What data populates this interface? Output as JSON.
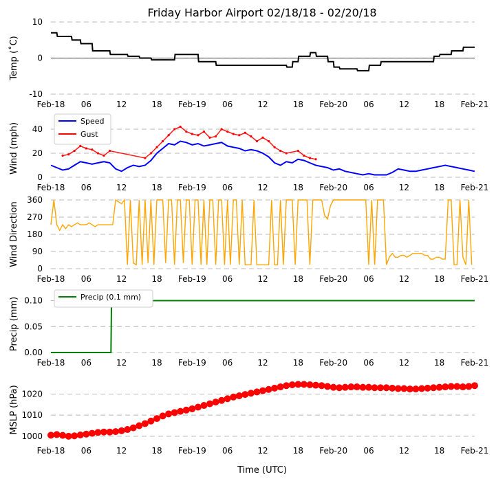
{
  "title": "Friday Harbor Airport 02/18/18 - 02/20/18",
  "xlabel": "Time (UTC)",
  "x_tick_labels": [
    "Feb-18",
    "06",
    "12",
    "18",
    "Feb-19",
    "06",
    "12",
    "18",
    "Feb-20",
    "06",
    "12",
    "18",
    "Feb-21"
  ],
  "x_range_hours": [
    0,
    72
  ],
  "colors": {
    "temp": "#000000",
    "speed": "#0000ff",
    "gust": "#ff0000",
    "direction": "#ffa500",
    "precip": "#008000",
    "pressure": "#ff0000"
  },
  "chart_data": [
    {
      "id": "temp",
      "type": "line",
      "ylabel": "Temp (˚C)",
      "ylim": [
        -10,
        10
      ],
      "yticks": [
        -10,
        0,
        10
      ],
      "series": [
        {
          "name": "Temp",
          "x": [
            0,
            1,
            1.1,
            3.5,
            3.6,
            5,
            5.1,
            7,
            7.1,
            10,
            10.1,
            13,
            13.1,
            15,
            15.1,
            17,
            17.1,
            21,
            21.1,
            25,
            25.1,
            28,
            28.1,
            40,
            40.1,
            41,
            41.1,
            42,
            42.1,
            44,
            44.1,
            45,
            45.1,
            47,
            47.1,
            48,
            48.1,
            49,
            49.1,
            52,
            52.1,
            54,
            54.1,
            56,
            56.1,
            65,
            65.1,
            66,
            66.1,
            68,
            68.1,
            70,
            70.1,
            72
          ],
          "y": [
            7,
            7,
            6,
            6,
            5,
            5,
            4,
            4,
            2,
            2,
            1,
            1,
            0.5,
            0.5,
            0,
            0,
            -0.5,
            -0.5,
            1,
            1,
            -1,
            -1,
            -2,
            -2,
            -2.5,
            -2.5,
            -1,
            -1,
            0.5,
            0.5,
            1.5,
            1.5,
            0.5,
            0.5,
            -1,
            -1,
            -2.5,
            -2.5,
            -3,
            -3,
            -3.5,
            -3.5,
            -2,
            -2,
            -1,
            -1,
            0.5,
            0.5,
            1,
            1,
            2,
            2,
            3,
            3
          ]
        }
      ]
    },
    {
      "id": "wind",
      "type": "line",
      "ylabel": "Wind (mph)",
      "ylim": [
        0,
        48
      ],
      "yticks": [
        0,
        20,
        40
      ],
      "legend": [
        "Speed",
        "Gust"
      ],
      "series": [
        {
          "name": "Speed",
          "x": [
            0,
            1,
            2,
            3,
            4,
            5,
            6,
            7,
            8,
            9,
            10,
            11,
            12,
            13,
            14,
            15,
            16,
            17,
            18,
            19,
            20,
            21,
            22,
            23,
            24,
            25,
            26,
            27,
            28,
            29,
            30,
            31,
            32,
            33,
            34,
            35,
            36,
            37,
            38,
            39,
            40,
            41,
            42,
            43,
            44,
            45,
            46,
            47,
            48,
            49,
            50,
            51,
            52,
            53,
            54,
            55,
            56,
            57,
            58,
            59,
            60,
            61,
            62,
            63,
            64,
            65,
            66,
            67,
            68,
            69,
            70,
            71,
            72
          ],
          "y": [
            10,
            8,
            6,
            7,
            10,
            13,
            12,
            11,
            12,
            13,
            12,
            7,
            5,
            8,
            10,
            9,
            10,
            14,
            20,
            24,
            28,
            27,
            30,
            29,
            27,
            28,
            26,
            27,
            28,
            29,
            26,
            25,
            24,
            22,
            23,
            22,
            20,
            17,
            12,
            10,
            13,
            12,
            15,
            14,
            12,
            10,
            9,
            8,
            6,
            7,
            5,
            4,
            3,
            2,
            3,
            2,
            2,
            2,
            4,
            7,
            6,
            5,
            5,
            6,
            7,
            8,
            9,
            10,
            9,
            8,
            7,
            6,
            5
          ]
        },
        {
          "name": "Gust",
          "x": [
            2,
            3,
            4,
            5,
            6,
            7,
            8,
            9,
            10,
            16,
            17,
            18,
            19,
            20,
            21,
            22,
            23,
            24,
            25,
            26,
            27,
            28,
            29,
            30,
            31,
            32,
            33,
            34,
            35,
            36,
            37,
            38,
            39,
            40,
            42,
            43,
            44,
            45
          ],
          "y": [
            18,
            19,
            22,
            26,
            24,
            23,
            20,
            18,
            22,
            16,
            20,
            25,
            30,
            35,
            40,
            42,
            38,
            36,
            35,
            38,
            33,
            34,
            40,
            38,
            36,
            35,
            37,
            34,
            30,
            33,
            30,
            25,
            22,
            20,
            22,
            18,
            16,
            15
          ]
        }
      ]
    },
    {
      "id": "direction",
      "type": "scatter-line",
      "ylabel": "Wind Direction",
      "ylim": [
        0,
        360
      ],
      "yticks": [
        0,
        90,
        180,
        270,
        360
      ],
      "series": [
        {
          "name": "Direction",
          "x": [
            0,
            0.5,
            1,
            1.5,
            2,
            2.5,
            3,
            3.5,
            4,
            4.5,
            5,
            5.5,
            6,
            6.5,
            7,
            7.5,
            8,
            8.5,
            9,
            9.5,
            10,
            10.5,
            11,
            11.5,
            12,
            12.5,
            13,
            13.5,
            14,
            14.5,
            15,
            15.5,
            16,
            16.5,
            17,
            17.5,
            18,
            18.5,
            19,
            19.5,
            20,
            20.5,
            21,
            21.5,
            22,
            22.5,
            23,
            23.5,
            24,
            24.5,
            25,
            25.5,
            26,
            26.5,
            27,
            27.5,
            28,
            28.5,
            29,
            29.5,
            30,
            30.5,
            31,
            31.5,
            32,
            32.5,
            33,
            33.5,
            34,
            34.5,
            35,
            35.5,
            36,
            36.5,
            37,
            37.5,
            38,
            38.5,
            39,
            39.5,
            40,
            40.5,
            41,
            41.5,
            42,
            42.5,
            43,
            43.5,
            44,
            44.5,
            45,
            45.5,
            46,
            46.5,
            47,
            47.5,
            48,
            48.5,
            49,
            49.5,
            50,
            50.5,
            51,
            51.5,
            52,
            52.5,
            53,
            53.5,
            54,
            54.5,
            55,
            55.5,
            56,
            56.5,
            57,
            57.5,
            58,
            58.5,
            59,
            59.5,
            60,
            60.5,
            61,
            61.5,
            62,
            62.5,
            63,
            63.5,
            64,
            64.5,
            65,
            65.5,
            66,
            66.5,
            67,
            67.5,
            68,
            68.5,
            69,
            69.5,
            70,
            70.5,
            71,
            71.5
          ],
          "y": [
            230,
            360,
            230,
            200,
            230,
            210,
            230,
            220,
            230,
            240,
            230,
            230,
            230,
            240,
            230,
            220,
            230,
            230,
            230,
            230,
            230,
            230,
            360,
            350,
            340,
            360,
            20,
            360,
            30,
            20,
            360,
            20,
            360,
            30,
            360,
            20,
            360,
            360,
            360,
            30,
            360,
            360,
            20,
            360,
            360,
            30,
            360,
            360,
            20,
            360,
            360,
            20,
            360,
            20,
            360,
            360,
            20,
            360,
            360,
            20,
            360,
            20,
            360,
            360,
            20,
            360,
            20,
            20,
            20,
            360,
            20,
            20,
            20,
            20,
            20,
            360,
            20,
            20,
            360,
            20,
            360,
            360,
            360,
            20,
            360,
            360,
            360,
            360,
            20,
            360,
            360,
            360,
            360,
            280,
            260,
            330,
            360,
            360,
            360,
            360,
            360,
            360,
            360,
            360,
            360,
            360,
            360,
            360,
            20,
            360,
            20,
            360,
            360,
            360,
            20,
            60,
            80,
            60,
            60,
            70,
            70,
            60,
            70,
            80,
            80,
            80,
            80,
            70,
            70,
            50,
            50,
            60,
            60,
            50,
            50,
            360,
            360,
            20,
            20,
            360,
            60,
            20,
            360,
            20
          ]
        }
      ]
    },
    {
      "id": "precip",
      "type": "line",
      "ylabel": "Precip (mm)",
      "ylim": [
        0,
        0.11
      ],
      "yticks": [
        "0.00",
        "0.05",
        "0.10"
      ],
      "legend": [
        "Precip (0.1 mm)"
      ],
      "series": [
        {
          "name": "Precip (0.1 mm)",
          "x": [
            0,
            10.2,
            10.3,
            72
          ],
          "y": [
            0,
            0,
            0.1,
            0.1
          ]
        }
      ]
    },
    {
      "id": "pressure",
      "type": "line-marker",
      "ylabel": "MSLP (hPa)",
      "xlabel": "Time (UTC)",
      "ylim": [
        998,
        1027
      ],
      "yticks": [
        1000,
        1010,
        1020
      ],
      "series": [
        {
          "name": "MSLP",
          "x": [
            0,
            1,
            2,
            3,
            4,
            5,
            6,
            7,
            8,
            9,
            10,
            11,
            12,
            13,
            14,
            15,
            16,
            17,
            18,
            19,
            20,
            21,
            22,
            23,
            24,
            25,
            26,
            27,
            28,
            29,
            30,
            31,
            32,
            33,
            34,
            35,
            36,
            37,
            38,
            39,
            40,
            41,
            42,
            43,
            44,
            45,
            46,
            47,
            48,
            49,
            50,
            51,
            52,
            53,
            54,
            55,
            56,
            57,
            58,
            59,
            60,
            61,
            62,
            63,
            64,
            65,
            66,
            67,
            68,
            69,
            70,
            71,
            72
          ],
          "y": [
            1000.5,
            1000.8,
            1000.4,
            1000.0,
            1000.2,
            1000.6,
            1001.0,
            1001.4,
            1001.8,
            1002.0,
            1002.0,
            1002.2,
            1002.6,
            1003.2,
            1004.0,
            1005.0,
            1006.0,
            1007.2,
            1008.4,
            1009.6,
            1010.6,
            1011.2,
            1011.8,
            1012.4,
            1013.0,
            1013.8,
            1014.6,
            1015.4,
            1016.2,
            1017.0,
            1017.8,
            1018.6,
            1019.2,
            1019.8,
            1020.4,
            1021.0,
            1021.6,
            1022.2,
            1022.8,
            1023.4,
            1024.0,
            1024.4,
            1024.6,
            1024.6,
            1024.4,
            1024.2,
            1024.0,
            1023.6,
            1023.2,
            1023.0,
            1023.2,
            1023.4,
            1023.4,
            1023.2,
            1023.2,
            1023.0,
            1023.0,
            1023.0,
            1022.8,
            1022.6,
            1022.6,
            1022.4,
            1022.4,
            1022.6,
            1022.8,
            1023.0,
            1023.2,
            1023.4,
            1023.6,
            1023.6,
            1023.4,
            1023.6,
            1024.0
          ]
        }
      ]
    }
  ]
}
